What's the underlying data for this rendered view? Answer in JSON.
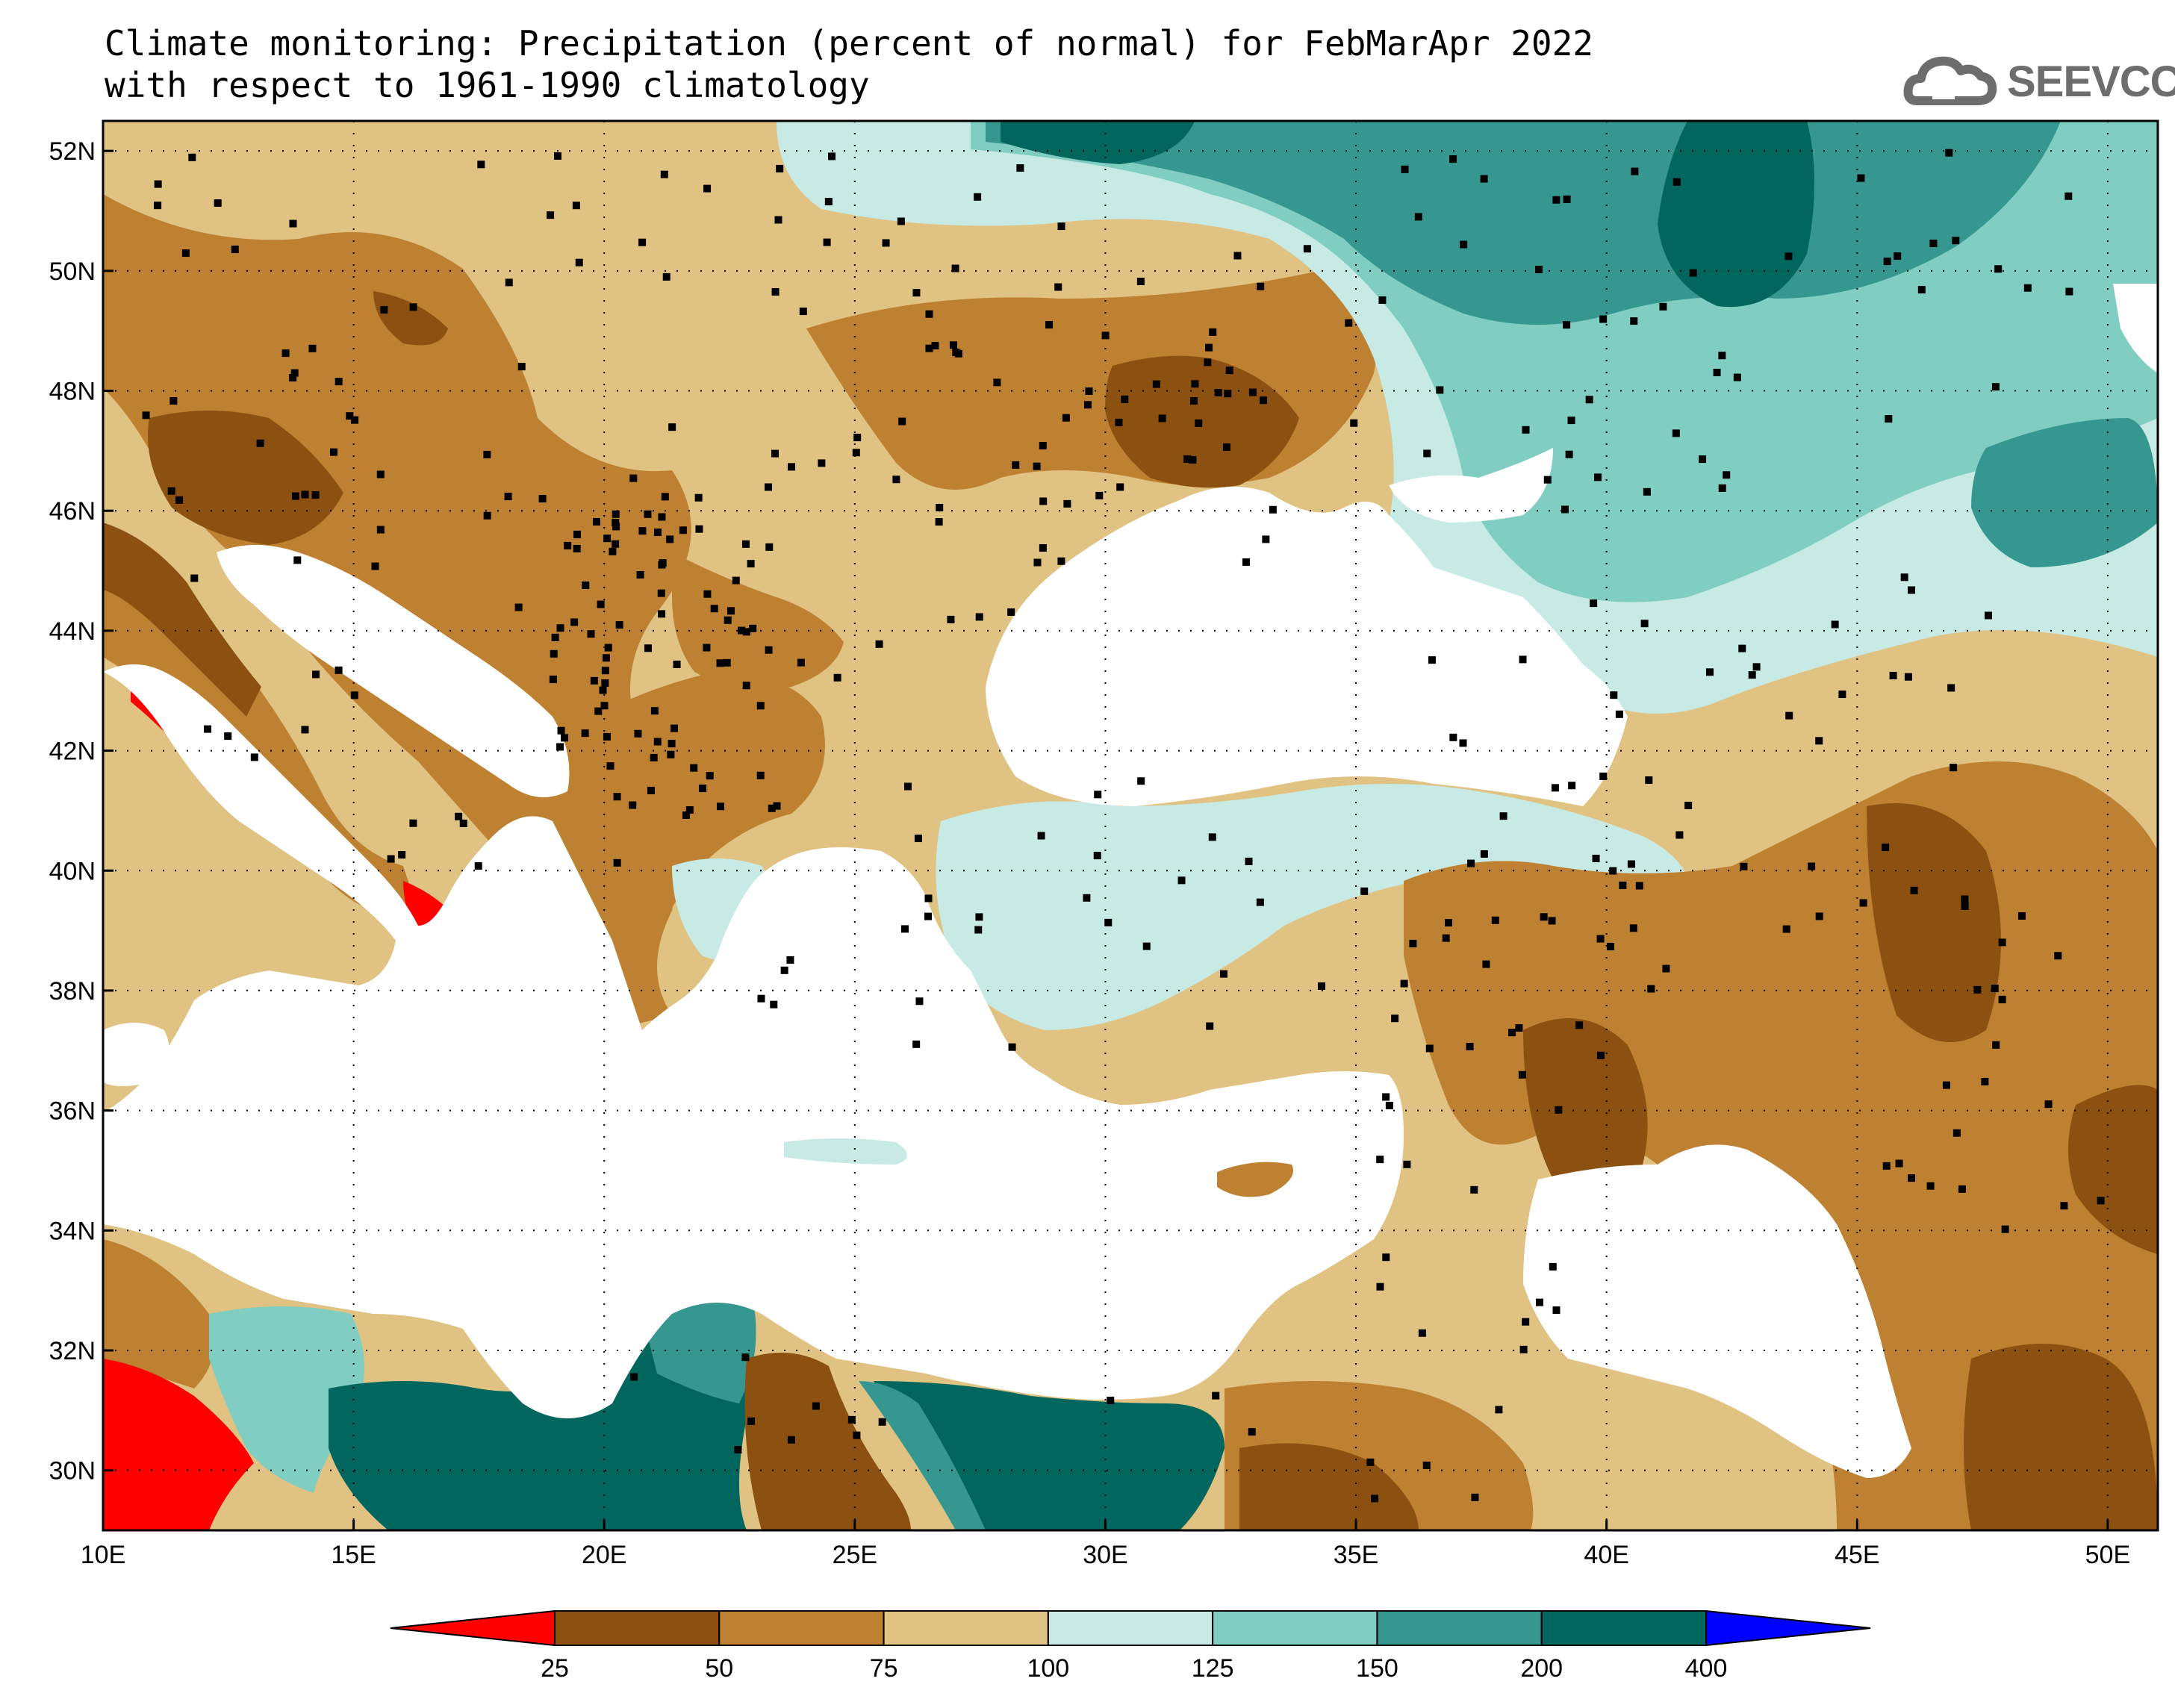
{
  "title": {
    "line1": "Climate monitoring: Precipitation (percent of normal) for FebMarApr 2022",
    "line2": "with respect to 1961-1990 climatology"
  },
  "logo": {
    "text": "SEEVCCC",
    "icon": "cloud-icon"
  },
  "map": {
    "lon_range": [
      10,
      51
    ],
    "lat_range": [
      29,
      52.5
    ],
    "lon_ticks": [
      {
        "value": 10,
        "label": "10E"
      },
      {
        "value": 15,
        "label": "15E"
      },
      {
        "value": 20,
        "label": "20E"
      },
      {
        "value": 25,
        "label": "25E"
      },
      {
        "value": 30,
        "label": "30E"
      },
      {
        "value": 35,
        "label": "35E"
      },
      {
        "value": 40,
        "label": "40E"
      },
      {
        "value": 45,
        "label": "45E"
      },
      {
        "value": 50,
        "label": "50E"
      }
    ],
    "lat_ticks": [
      {
        "value": 30,
        "label": "30N"
      },
      {
        "value": 32,
        "label": "32N"
      },
      {
        "value": 34,
        "label": "34N"
      },
      {
        "value": 36,
        "label": "36N"
      },
      {
        "value": 38,
        "label": "38N"
      },
      {
        "value": 40,
        "label": "40N"
      },
      {
        "value": 42,
        "label": "42N"
      },
      {
        "value": 44,
        "label": "44N"
      },
      {
        "value": 46,
        "label": "46N"
      },
      {
        "value": 48,
        "label": "48N"
      },
      {
        "value": 50,
        "label": "50N"
      },
      {
        "value": 52,
        "label": "52N"
      }
    ],
    "gridlines": true
  },
  "colorbar": {
    "under_color": "#ff0000",
    "over_color": "#0000ff",
    "bins": [
      {
        "color": "#8c5110"
      },
      {
        "color": "#be8132"
      },
      {
        "color": "#e0c283"
      },
      {
        "color": "#c8eae4"
      },
      {
        "color": "#80cdc1"
      },
      {
        "color": "#35978f"
      },
      {
        "color": "#01665e"
      }
    ],
    "tick_labels": [
      "25",
      "50",
      "75",
      "100",
      "125",
      "150",
      "200",
      "400"
    ]
  },
  "colors": {
    "sea": "#ffffff",
    "station_marker": "#000000"
  }
}
